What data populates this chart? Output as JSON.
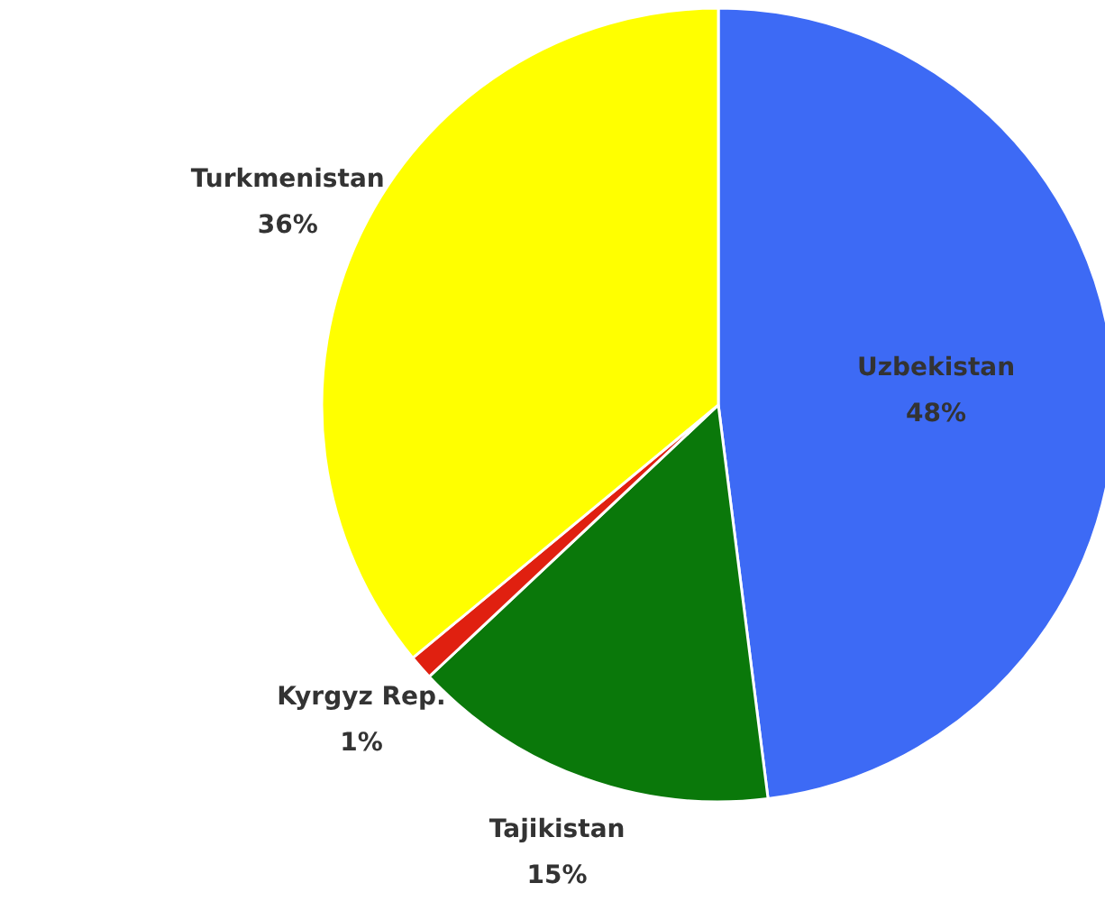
{
  "chart_data": {
    "type": "pie",
    "categories": [
      "Uzbekistan",
      "Tajikistan",
      "Kyrgyz Rep.",
      "Turkmenistan"
    ],
    "values": [
      48,
      15,
      1,
      36
    ],
    "colors": [
      "#3d6af5",
      "#0a780a",
      "#e02010",
      "#ffff00"
    ],
    "value_labels": [
      "48%",
      "15%",
      "1%",
      "36%"
    ]
  }
}
